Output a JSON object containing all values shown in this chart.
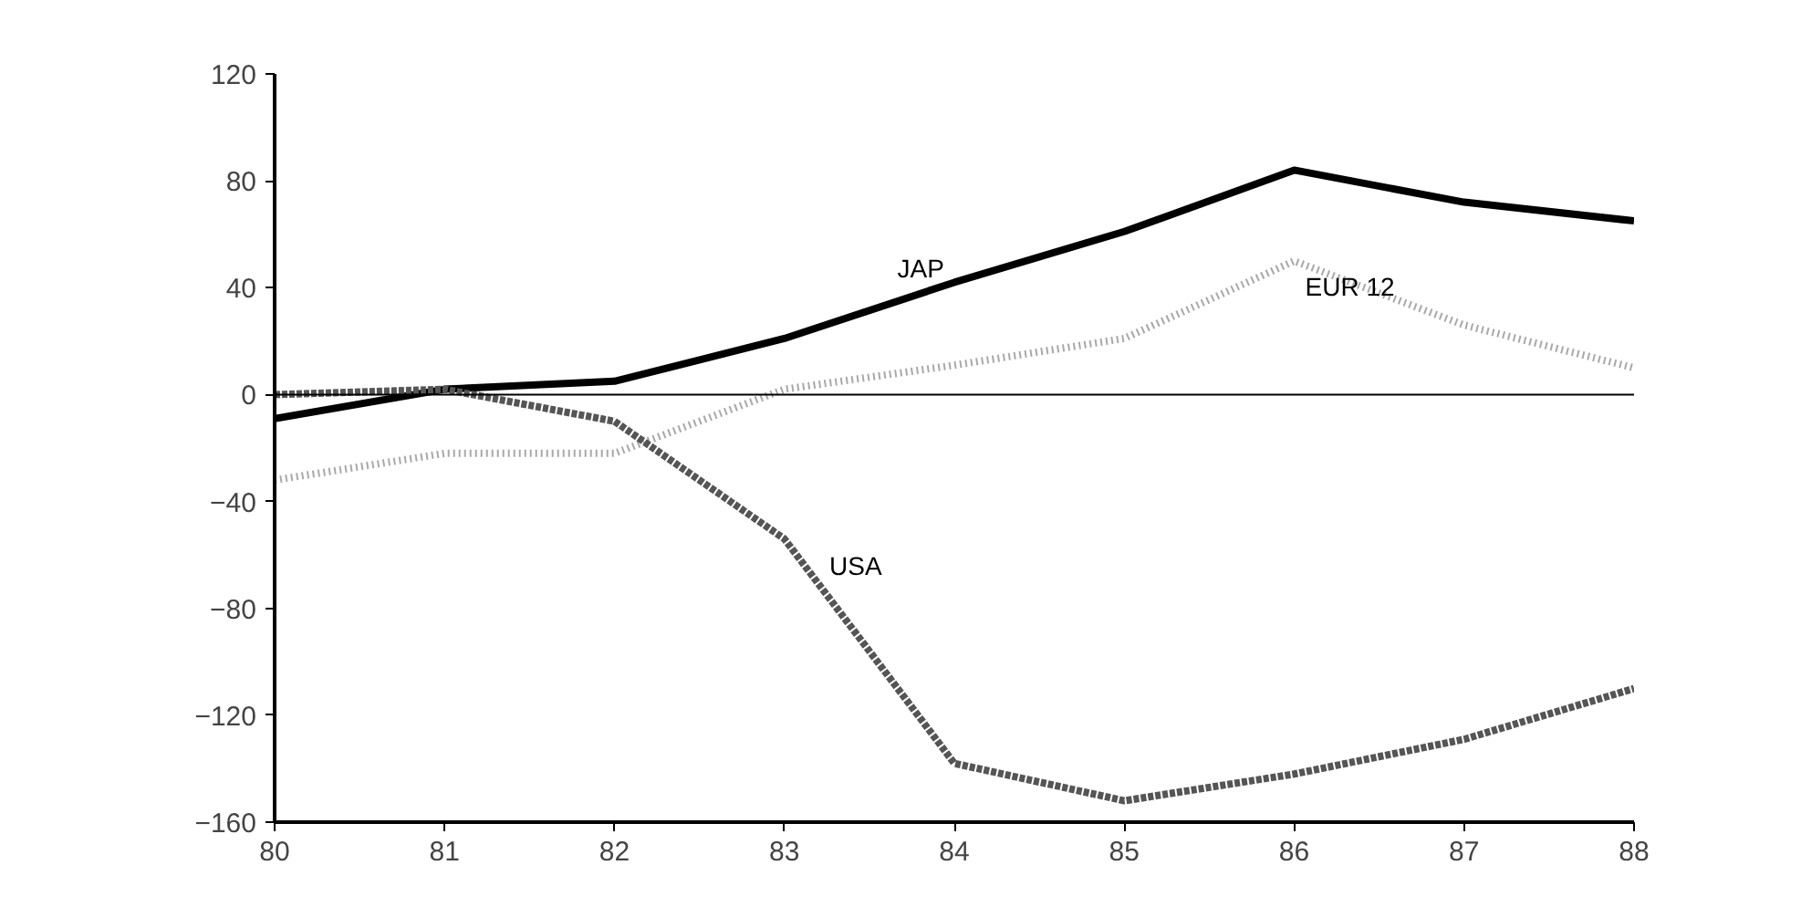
{
  "chart_data": {
    "type": "line",
    "x": [
      80,
      81,
      82,
      83,
      84,
      85,
      86,
      87,
      88
    ],
    "series": [
      {
        "name": "JAP",
        "color": "#000000",
        "line_style": "solid",
        "values": [
          -9,
          2,
          5,
          21,
          42,
          61,
          84,
          72,
          65
        ]
      },
      {
        "name": "EUR 12",
        "color": "#a8a8a8",
        "line_style": "dotted",
        "values": [
          -32,
          -22,
          -22,
          2,
          11,
          21,
          50,
          26,
          10
        ]
      },
      {
        "name": "USA",
        "color": "#555555",
        "line_style": "dashed",
        "values": [
          0,
          2,
          -10,
          -54,
          -138,
          -152,
          -142,
          -129,
          -110
        ]
      }
    ],
    "xlim": [
      80,
      88
    ],
    "xticks": [
      80,
      81,
      82,
      83,
      84,
      85,
      86,
      87,
      88
    ],
    "ylim": [
      -160,
      120
    ],
    "yticks": [
      -160,
      -120,
      -80,
      -40,
      0,
      40,
      80,
      120
    ],
    "ref_lines": [
      {
        "axis": "y",
        "value": 0,
        "color": "#000000"
      }
    ],
    "grid": false,
    "legend": false,
    "marker": "none"
  }
}
